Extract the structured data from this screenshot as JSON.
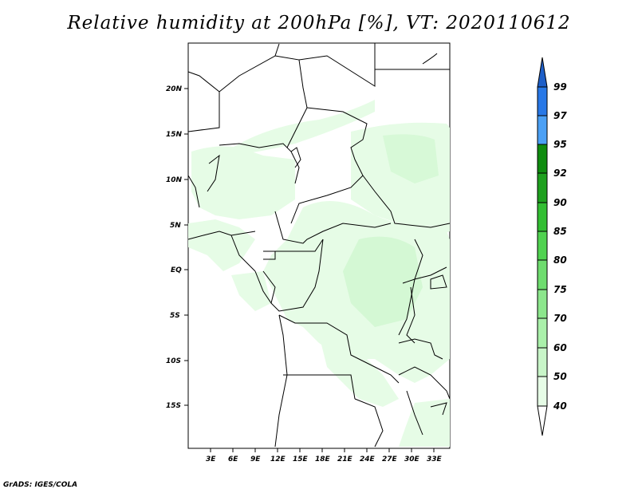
{
  "title": "Relative humidity at 200hPa [%], VT: 2020110612",
  "footer": "GrADS: IGES/COLA",
  "map": {
    "lat_ticks": [
      "20N",
      "15N",
      "10N",
      "5N",
      "EQ",
      "5S",
      "10S",
      "15S"
    ],
    "lat_values": [
      20,
      15,
      10,
      5,
      0,
      -5,
      -10,
      -15
    ],
    "lon_ticks": [
      "3E",
      "6E",
      "9E",
      "12E",
      "15E",
      "18E",
      "21E",
      "24E",
      "27E",
      "30E",
      "33E"
    ],
    "lon_values": [
      3,
      6,
      9,
      12,
      15,
      18,
      21,
      24,
      27,
      30,
      33
    ],
    "lat_range": [
      -20,
      25
    ],
    "lon_range": [
      0,
      35
    ]
  },
  "colorbar": {
    "levels": [
      "40",
      "50",
      "60",
      "70",
      "75",
      "80",
      "85",
      "90",
      "92",
      "95",
      "97",
      "99"
    ],
    "colors": [
      "#ffffff",
      "#e6fce6",
      "#c8f5c8",
      "#aaf0aa",
      "#8ce68c",
      "#6edc6e",
      "#50d250",
      "#32be32",
      "#1ea01e",
      "#0f8c0f",
      "#4ba0f5",
      "#2878e6",
      "#1e5fc8"
    ]
  }
}
